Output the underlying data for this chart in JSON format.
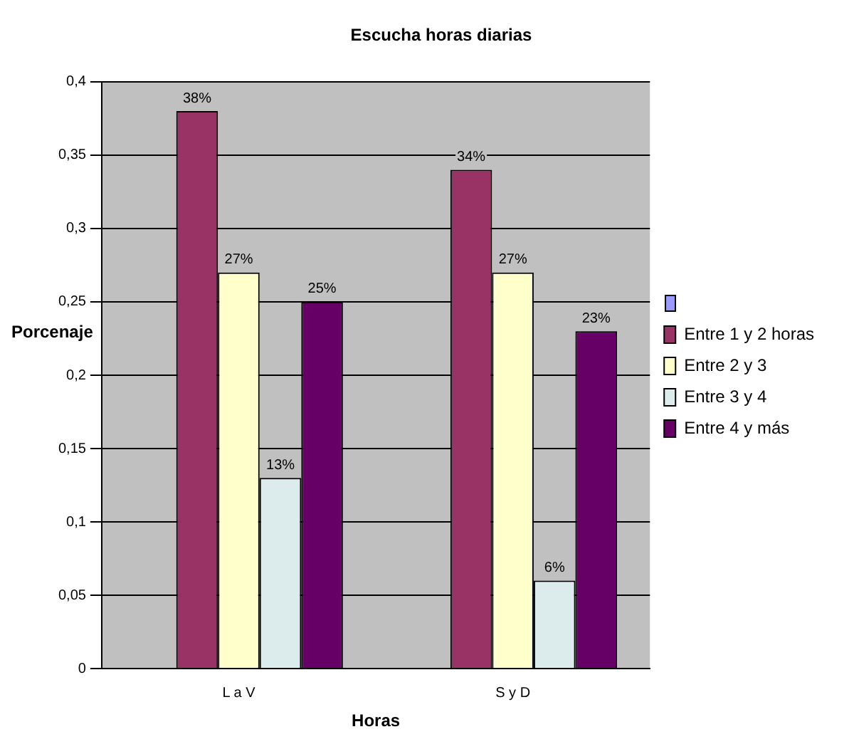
{
  "chart_data": {
    "type": "bar",
    "title": "Escucha horas diarias",
    "xlabel": "Horas",
    "ylabel": "Porcenaje",
    "categories": [
      "L a V",
      "S y D"
    ],
    "series": [
      {
        "color": "#9999ff",
        "values": [
          0,
          0
        ]
      },
      {
        "name": "Entre 1 y 2 horas",
        "color": "#993366",
        "values": [
          0.38,
          0.34
        ],
        "value_labels": [
          "38%",
          "34%"
        ]
      },
      {
        "name": "Entre 2 y 3",
        "color": "#ffffcc",
        "values": [
          0.27,
          0.27
        ],
        "value_labels": [
          "27%",
          "27%"
        ]
      },
      {
        "name": "Entre 3 y 4",
        "color": "#dcecec",
        "values": [
          0.13,
          0.06
        ],
        "value_labels": [
          "13%",
          "6%"
        ]
      },
      {
        "name": "Entre 4 y más",
        "color": "#660066",
        "values": [
          0.25,
          0.23
        ],
        "value_labels": [
          "25%",
          "23%"
        ]
      }
    ],
    "ylim": [
      0,
      0.4
    ],
    "yticks": [
      0,
      {
        "value": 0.05,
        "label": "0,05"
      },
      {
        "value": 0.1,
        "label": "0,1"
      },
      {
        "value": 0.15,
        "label": "0,15"
      },
      {
        "value": 0.2,
        "label": "0,2"
      },
      {
        "value": 0.25,
        "label": "0,25"
      },
      {
        "value": 0.3,
        "label": "0,3"
      },
      {
        "value": 0.35,
        "label": "0,35"
      },
      {
        "value": 0.4,
        "label": "0,4"
      }
    ],
    "grid": "y",
    "legend": "right"
  }
}
